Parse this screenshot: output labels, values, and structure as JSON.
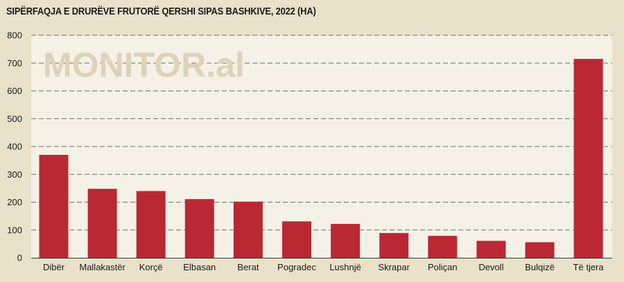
{
  "title": "SIPËRFAQJA E DRURËVE FRUTORË QERSHI SIPAS BASHKIVE, 2022 (HA)",
  "watermark": "MONITOR.al",
  "colors": {
    "bar": "#b92833",
    "plot_background": "#f5f1e6",
    "page_background": "#e9e1c9",
    "grid": "#6e6e6e"
  },
  "chart_data": {
    "type": "bar",
    "title": "SIPËRFAQJA E DRURËVE FRUTORË QERSHI SIPAS BASHKIVE, 2022 (HA)",
    "xlabel": "",
    "ylabel": "",
    "ylim": [
      0,
      800
    ],
    "yticks": [
      0,
      100,
      200,
      300,
      400,
      500,
      600,
      700,
      800
    ],
    "grid": "horizontal dashed",
    "categories": [
      "Dibër",
      "Mallakastër",
      "Korçë",
      "Elbasan",
      "Berat",
      "Pogradec",
      "Lushnjë",
      "Skrapar",
      "Poliçan",
      "Devoll",
      "Bulqizë",
      "Të tjera"
    ],
    "values": [
      370,
      248,
      240,
      211,
      202,
      131,
      122,
      89,
      79,
      61,
      56,
      715
    ]
  }
}
